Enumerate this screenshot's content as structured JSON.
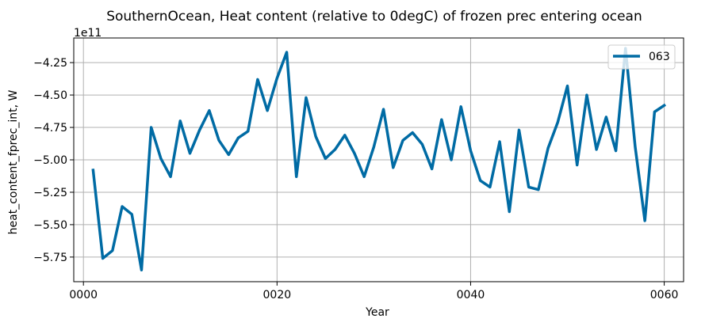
{
  "chart_data": {
    "type": "line",
    "title": "SouthernOcean, Heat content (relative to 0degC) of frozen prec entering ocean",
    "xlabel": "Year",
    "ylabel": "heat_content_fprec_int, W",
    "offset_text": "1e11",
    "xlim": [
      -1,
      62
    ],
    "ylim": [
      -5.94,
      -4.06
    ],
    "x_ticks": [
      0,
      20,
      40,
      60
    ],
    "x_tick_labels": [
      "0000",
      "0020",
      "0040",
      "0060"
    ],
    "y_ticks": [
      -5.75,
      -5.5,
      -5.25,
      -5.0,
      -4.75,
      -4.5,
      -4.25
    ],
    "y_tick_labels": [
      "−5.75",
      "−5.50",
      "−5.25",
      "−5.00",
      "−4.75",
      "−4.50",
      "−4.25"
    ],
    "grid": true,
    "legend_position": "top-right",
    "series": [
      {
        "name": "063",
        "color": "#006ba4",
        "x": [
          1,
          2,
          3,
          4,
          5,
          6,
          7,
          8,
          9,
          10,
          11,
          12,
          13,
          14,
          15,
          16,
          17,
          18,
          19,
          20,
          21,
          22,
          23,
          24,
          25,
          26,
          27,
          28,
          29,
          30,
          31,
          32,
          33,
          34,
          35,
          36,
          37,
          38,
          39,
          40,
          41,
          42,
          43,
          44,
          45,
          46,
          47,
          48,
          49,
          50,
          51,
          52,
          53,
          54,
          55,
          56,
          57,
          58,
          59,
          60
        ],
        "values": [
          -5.08,
          -5.76,
          -5.7,
          -5.36,
          -5.42,
          -5.85,
          -4.75,
          -4.99,
          -5.13,
          -4.7,
          -4.95,
          -4.77,
          -4.62,
          -4.85,
          -4.96,
          -4.83,
          -4.78,
          -4.38,
          -4.62,
          -4.37,
          -4.17,
          -5.13,
          -4.52,
          -4.82,
          -4.99,
          -4.92,
          -4.81,
          -4.95,
          -5.13,
          -4.9,
          -4.61,
          -5.06,
          -4.85,
          -4.79,
          -4.88,
          -5.07,
          -4.69,
          -5.0,
          -4.59,
          -4.93,
          -5.16,
          -5.21,
          -4.86,
          -5.4,
          -4.77,
          -5.21,
          -5.23,
          -4.91,
          -4.71,
          -4.43,
          -5.04,
          -4.5,
          -4.92,
          -4.67,
          -4.93,
          -4.14,
          -4.9,
          -5.47,
          -4.63,
          -4.58
        ]
      }
    ]
  }
}
